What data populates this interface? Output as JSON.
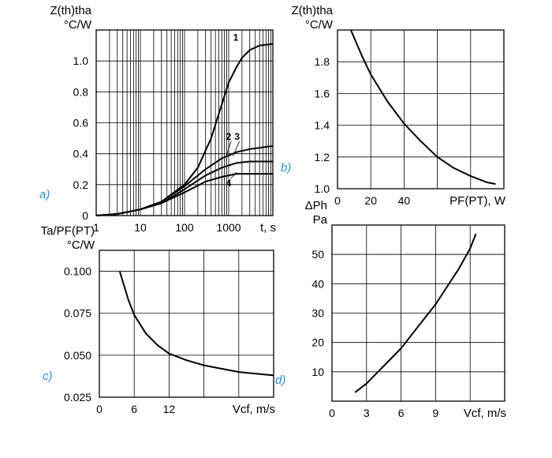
{
  "chart_data": [
    {
      "id": "a",
      "panel_label": "a)",
      "type": "line",
      "xscale": "log",
      "ylabel": [
        "Z(th)tha",
        "°C/W"
      ],
      "xlabel": "t, s",
      "xlim": [
        1,
        10000
      ],
      "ylim": [
        0,
        1.2
      ],
      "xticks": [
        {
          "v": 1,
          "t": "1"
        },
        {
          "v": 10,
          "t": "10"
        },
        {
          "v": 100,
          "t": "100"
        },
        {
          "v": 1000,
          "t": "1000"
        }
      ],
      "yticks": [
        {
          "v": 0,
          "t": "0"
        },
        {
          "v": 0.2,
          "t": "0.2"
        },
        {
          "v": 0.4,
          "t": "0.4"
        },
        {
          "v": 0.6,
          "t": "0.6"
        },
        {
          "v": 0.8,
          "t": "0.8"
        },
        {
          "v": 1.0,
          "t": "1.0"
        }
      ],
      "series": [
        {
          "name": "1",
          "x": [
            1,
            3,
            10,
            30,
            100,
            200,
            400,
            700,
            1000,
            1500,
            2000,
            3000,
            5000,
            10000
          ],
          "y": [
            0,
            0.01,
            0.04,
            0.09,
            0.2,
            0.31,
            0.5,
            0.72,
            0.86,
            0.96,
            1.02,
            1.07,
            1.1,
            1.11
          ]
        },
        {
          "name": "2",
          "x": [
            1,
            3,
            10,
            30,
            100,
            300,
            700,
            1500,
            3000,
            10000
          ],
          "y": [
            0,
            0.01,
            0.04,
            0.09,
            0.19,
            0.3,
            0.37,
            0.41,
            0.43,
            0.45
          ]
        },
        {
          "name": "3",
          "x": [
            1,
            3,
            10,
            30,
            100,
            300,
            700,
            1500,
            3000,
            10000
          ],
          "y": [
            0,
            0.01,
            0.04,
            0.08,
            0.17,
            0.26,
            0.31,
            0.34,
            0.35,
            0.35
          ]
        },
        {
          "name": "4",
          "x": [
            1,
            3,
            10,
            30,
            100,
            300,
            700,
            1500,
            3000,
            10000
          ],
          "y": [
            0,
            0.01,
            0.04,
            0.08,
            0.15,
            0.22,
            0.25,
            0.27,
            0.27,
            0.27
          ]
        }
      ]
    },
    {
      "id": "b",
      "panel_label": "b)",
      "type": "line",
      "ylabel": [
        "Z(th)tha",
        "°C/W"
      ],
      "xlabel": "PF(PT), W",
      "xlim": [
        0,
        100
      ],
      "ylim": [
        1.0,
        2.0
      ],
      "xticks": [
        {
          "v": 0,
          "t": "0"
        },
        {
          "v": 20,
          "t": "20"
        },
        {
          "v": 40,
          "t": "40"
        }
      ],
      "yticks": [
        {
          "v": 1.0,
          "t": "1.0"
        },
        {
          "v": 1.2,
          "t": "1.2"
        },
        {
          "v": 1.4,
          "t": "1.4"
        },
        {
          "v": 1.6,
          "t": "1.6"
        },
        {
          "v": 1.8,
          "t": "1.8"
        }
      ],
      "series": [
        {
          "x": [
            8,
            15,
            20,
            30,
            40,
            50,
            60,
            70,
            80,
            90,
            95
          ],
          "y": [
            2.0,
            1.83,
            1.72,
            1.55,
            1.41,
            1.3,
            1.2,
            1.13,
            1.08,
            1.04,
            1.03
          ]
        }
      ]
    },
    {
      "id": "c",
      "panel_label": "c)",
      "type": "line",
      "ylabel": [
        "Ta/PF(PT)",
        "°C/W"
      ],
      "xlabel": "Vcf, m/s",
      "xlim": [
        0,
        30
      ],
      "ylim": [
        0.025,
        0.1125
      ],
      "xticks": [
        {
          "v": 0,
          "t": "0"
        },
        {
          "v": 6,
          "t": "6"
        },
        {
          "v": 12,
          "t": "12"
        }
      ],
      "yticks": [
        {
          "v": 0.025,
          "t": "0.025"
        },
        {
          "v": 0.05,
          "t": "0.050"
        },
        {
          "v": 0.075,
          "t": "0.075"
        },
        {
          "v": 0.1,
          "t": "0.100"
        }
      ],
      "series": [
        {
          "x": [
            3.5,
            5,
            6,
            8,
            10,
            12,
            15,
            18,
            21,
            24,
            27,
            30
          ],
          "y": [
            0.1,
            0.083,
            0.074,
            0.063,
            0.056,
            0.051,
            0.047,
            0.044,
            0.042,
            0.04,
            0.039,
            0.038
          ]
        }
      ]
    },
    {
      "id": "d",
      "panel_label": "d)",
      "type": "line",
      "ylabel": [
        "ΔPh",
        "Pa"
      ],
      "xlabel": "Vcf, m/s",
      "xlim": [
        0,
        15
      ],
      "ylim": [
        0,
        60
      ],
      "xticks": [
        {
          "v": 0,
          "t": "0"
        },
        {
          "v": 3,
          "t": "3"
        },
        {
          "v": 6,
          "t": "6"
        },
        {
          "v": 9,
          "t": "9"
        }
      ],
      "yticks": [
        {
          "v": 10,
          "t": "10"
        },
        {
          "v": 20,
          "t": "20"
        },
        {
          "v": 30,
          "t": "30"
        },
        {
          "v": 40,
          "t": "40"
        },
        {
          "v": 50,
          "t": "50"
        }
      ],
      "series": [
        {
          "x": [
            2,
            3,
            4,
            5,
            6,
            7,
            8,
            9,
            10,
            11,
            12,
            12.5
          ],
          "y": [
            3,
            6,
            10,
            14,
            18,
            23,
            28,
            33,
            39,
            45,
            52,
            57
          ]
        }
      ]
    }
  ]
}
